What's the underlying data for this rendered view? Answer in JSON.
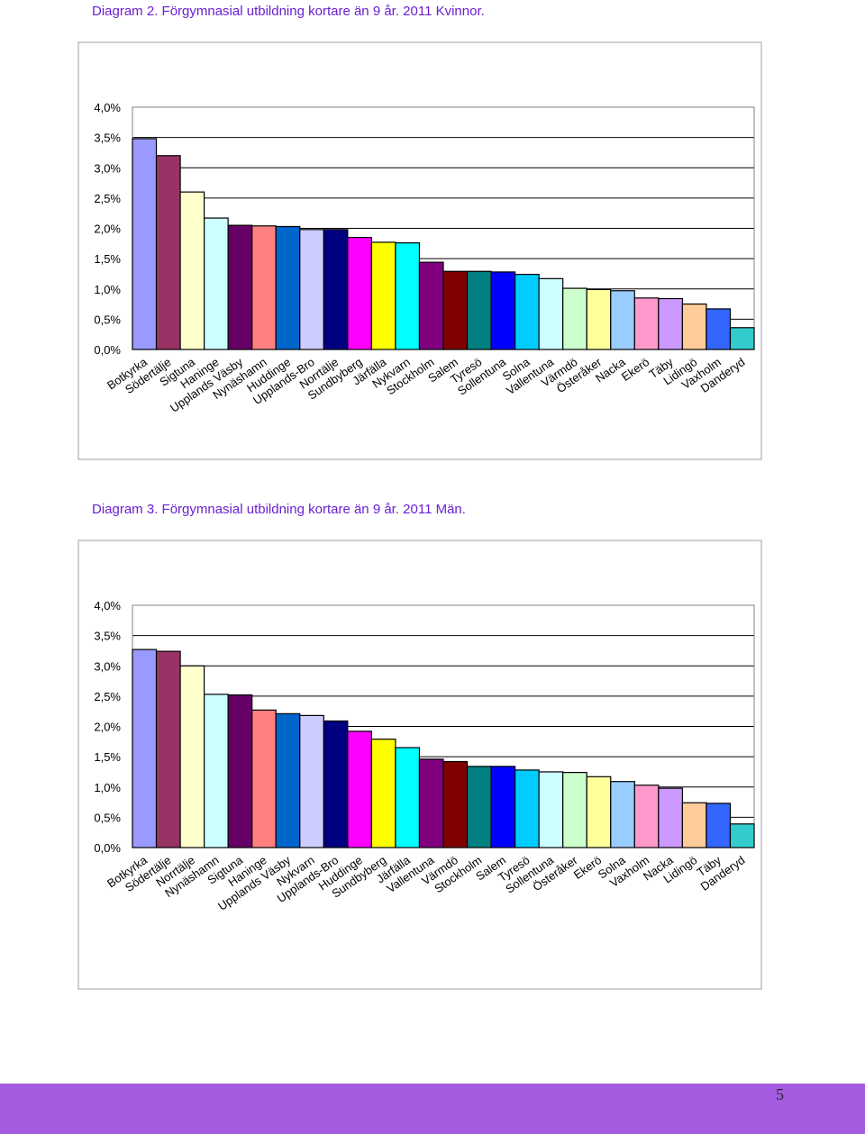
{
  "page": {
    "number": "5"
  },
  "colors": {
    "title": "#6a1fd1",
    "footer": "#a35be0"
  },
  "diagrams": [
    {
      "title": "Diagram 2. Förgymnasial utbildning kortare än 9 år. 2011 Kvinnor."
    },
    {
      "title": "Diagram 3. Förgymnasial utbildning kortare än 9 år. 2011 Män."
    }
  ],
  "chart_data": [
    {
      "type": "bar",
      "title": "Diagram 2. Förgymnasial utbildning kortare än 9 år. 2011 Kvinnor.",
      "ylim": [
        0,
        4.0
      ],
      "yticks": [
        "0,0%",
        "0,5%",
        "1,0%",
        "1,5%",
        "2,0%",
        "2,5%",
        "3,0%",
        "3,5%",
        "4,0%"
      ],
      "grid": true,
      "categories": [
        "Botkyrka",
        "Södertälje",
        "Sigtuna",
        "Haninge",
        "Upplands Väsby",
        "Nynäshamn",
        "Huddinge",
        "Upplands-Bro",
        "Norrtälje",
        "Sundbyberg",
        "Järfälla",
        "Nykvarn",
        "Stockholm",
        "Salem",
        "Tyresö",
        "Sollentuna",
        "Solna",
        "Vallentuna",
        "Värmdö",
        "Österåker",
        "Nacka",
        "Ekerö",
        "Täby",
        "Lidingö",
        "Vaxholm",
        "Danderyd"
      ],
      "values": [
        3.48,
        3.2,
        2.6,
        2.17,
        2.05,
        2.04,
        2.03,
        1.98,
        1.98,
        1.85,
        1.77,
        1.76,
        1.44,
        1.29,
        1.29,
        1.28,
        1.24,
        1.17,
        1.01,
        0.99,
        0.97,
        0.85,
        0.84,
        0.75,
        0.67,
        0.36
      ],
      "colors": [
        "#9999ff",
        "#993366",
        "#ffffcc",
        "#ccffff",
        "#660066",
        "#ff8080",
        "#0066cc",
        "#ccccff",
        "#000080",
        "#ff00ff",
        "#ffff00",
        "#00ffff",
        "#800080",
        "#800000",
        "#008080",
        "#0000ff",
        "#00ccff",
        "#ccffff",
        "#ccffcc",
        "#ffff99",
        "#99ccff",
        "#ff99cc",
        "#cc99ff",
        "#ffcc99",
        "#3366ff",
        "#33cccc"
      ]
    },
    {
      "type": "bar",
      "title": "Diagram 3. Förgymnasial utbildning kortare än 9 år. 2011 Män.",
      "ylim": [
        0,
        4.0
      ],
      "yticks": [
        "0,0%",
        "0,5%",
        "1,0%",
        "1,5%",
        "2,0%",
        "2,5%",
        "3,0%",
        "3,5%",
        "4,0%"
      ],
      "grid": true,
      "categories": [
        "Botkyrka",
        "Södertälje",
        "Norrtälje",
        "Nynäshamn",
        "Sigtuna",
        "Haninge",
        "Upplands Väsby",
        "Nykvarn",
        "Upplands-Bro",
        "Huddinge",
        "Sundbyberg",
        "Järfälla",
        "Vallentuna",
        "Värmdö",
        "Stockholm",
        "Salem",
        "Tyresö",
        "Sollentuna",
        "Österåker",
        "Ekerö",
        "Solna",
        "Vaxholm",
        "Nacka",
        "Lidingö",
        "Täby",
        "Danderyd"
      ],
      "values": [
        3.27,
        3.24,
        3.0,
        2.53,
        2.52,
        2.27,
        2.21,
        2.18,
        2.09,
        1.92,
        1.79,
        1.65,
        1.46,
        1.42,
        1.34,
        1.34,
        1.28,
        1.25,
        1.24,
        1.17,
        1.09,
        1.03,
        0.98,
        0.74,
        0.73,
        0.39
      ],
      "colors": [
        "#9999ff",
        "#993366",
        "#ffffcc",
        "#ccffff",
        "#660066",
        "#ff8080",
        "#0066cc",
        "#ccccff",
        "#000080",
        "#ff00ff",
        "#ffff00",
        "#00ffff",
        "#800080",
        "#800000",
        "#008080",
        "#0000ff",
        "#00ccff",
        "#ccffff",
        "#ccffcc",
        "#ffff99",
        "#99ccff",
        "#ff99cc",
        "#cc99ff",
        "#ffcc99",
        "#3366ff",
        "#33cccc"
      ]
    }
  ]
}
